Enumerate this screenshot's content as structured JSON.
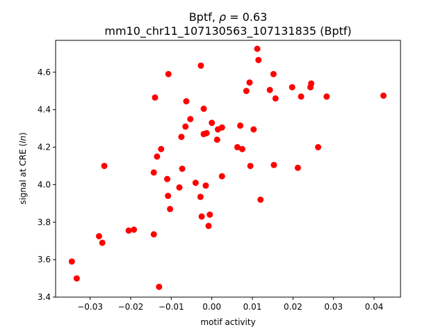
{
  "chart_data": {
    "type": "scatter",
    "title_line1_prefix": "Bptf, ",
    "title_line1_symbol": "ρ",
    "title_line1_suffix": " = 0.63",
    "title_line2": "mm10_chr11_107130563_107131835 (Bptf)",
    "xlabel": "motif activity",
    "ylabel_prefix": "signal at CRE (",
    "ylabel_italic": "ln",
    "ylabel_suffix": ")",
    "xlim": [
      -0.0385,
      0.0465
    ],
    "ylim": [
      3.4,
      4.77
    ],
    "xticks": [
      -0.03,
      -0.02,
      -0.01,
      0.0,
      0.01,
      0.02,
      0.03,
      0.04
    ],
    "xtick_labels": [
      "−0.03",
      "−0.02",
      "−0.01",
      "0.00",
      "0.01",
      "0.02",
      "0.03",
      "0.04"
    ],
    "yticks": [
      3.4,
      3.6,
      3.8,
      4.0,
      4.2,
      4.4,
      4.6
    ],
    "ytick_labels": [
      "3.4",
      "3.6",
      "3.8",
      "4.0",
      "4.2",
      "4.4",
      "4.6"
    ],
    "marker_color": "#ff0000",
    "points": [
      {
        "x": -0.0345,
        "y": 3.59
      },
      {
        "x": -0.0333,
        "y": 3.5
      },
      {
        "x": -0.0278,
        "y": 3.725
      },
      {
        "x": -0.027,
        "y": 3.69
      },
      {
        "x": -0.0265,
        "y": 4.1
      },
      {
        "x": -0.0205,
        "y": 3.755
      },
      {
        "x": -0.0192,
        "y": 3.76
      },
      {
        "x": -0.0143,
        "y": 3.735
      },
      {
        "x": -0.0143,
        "y": 4.065
      },
      {
        "x": -0.014,
        "y": 4.465
      },
      {
        "x": -0.0135,
        "y": 4.15
      },
      {
        "x": -0.013,
        "y": 3.455
      },
      {
        "x": -0.0125,
        "y": 4.19
      },
      {
        "x": -0.011,
        "y": 4.03
      },
      {
        "x": -0.0108,
        "y": 3.94
      },
      {
        "x": -0.0107,
        "y": 4.59
      },
      {
        "x": -0.0103,
        "y": 3.87
      },
      {
        "x": -0.008,
        "y": 3.985
      },
      {
        "x": -0.0075,
        "y": 4.255
      },
      {
        "x": -0.0073,
        "y": 4.085
      },
      {
        "x": -0.0065,
        "y": 4.31
      },
      {
        "x": -0.0063,
        "y": 4.445
      },
      {
        "x": -0.0053,
        "y": 4.35
      },
      {
        "x": -0.004,
        "y": 4.01
      },
      {
        "x": -0.0028,
        "y": 3.935
      },
      {
        "x": -0.0027,
        "y": 4.635
      },
      {
        "x": -0.0025,
        "y": 3.83
      },
      {
        "x": -0.002,
        "y": 4.405
      },
      {
        "x": -0.002,
        "y": 4.27
      },
      {
        "x": -0.0015,
        "y": 3.995
      },
      {
        "x": -0.0013,
        "y": 4.275
      },
      {
        "x": -0.0008,
        "y": 3.78
      },
      {
        "x": -0.0005,
        "y": 3.84
      },
      {
        "x": 0.0,
        "y": 4.33
      },
      {
        "x": 0.0013,
        "y": 4.24
      },
      {
        "x": 0.0015,
        "y": 4.295
      },
      {
        "x": 0.0025,
        "y": 4.045
      },
      {
        "x": 0.0025,
        "y": 4.305
      },
      {
        "x": 0.0063,
        "y": 4.2
      },
      {
        "x": 0.007,
        "y": 4.315
      },
      {
        "x": 0.0075,
        "y": 4.19
      },
      {
        "x": 0.0085,
        "y": 4.5
      },
      {
        "x": 0.0093,
        "y": 4.545
      },
      {
        "x": 0.0095,
        "y": 4.1
      },
      {
        "x": 0.0103,
        "y": 4.295
      },
      {
        "x": 0.0112,
        "y": 4.725
      },
      {
        "x": 0.0115,
        "y": 4.665
      },
      {
        "x": 0.012,
        "y": 3.92
      },
      {
        "x": 0.0143,
        "y": 4.505
      },
      {
        "x": 0.0152,
        "y": 4.59
      },
      {
        "x": 0.0153,
        "y": 4.105
      },
      {
        "x": 0.0157,
        "y": 4.46
      },
      {
        "x": 0.0198,
        "y": 4.52
      },
      {
        "x": 0.0212,
        "y": 4.09
      },
      {
        "x": 0.022,
        "y": 4.47
      },
      {
        "x": 0.0243,
        "y": 4.52
      },
      {
        "x": 0.0245,
        "y": 4.54
      },
      {
        "x": 0.0262,
        "y": 4.2
      },
      {
        "x": 0.0283,
        "y": 4.47
      },
      {
        "x": 0.0423,
        "y": 4.475
      }
    ]
  }
}
